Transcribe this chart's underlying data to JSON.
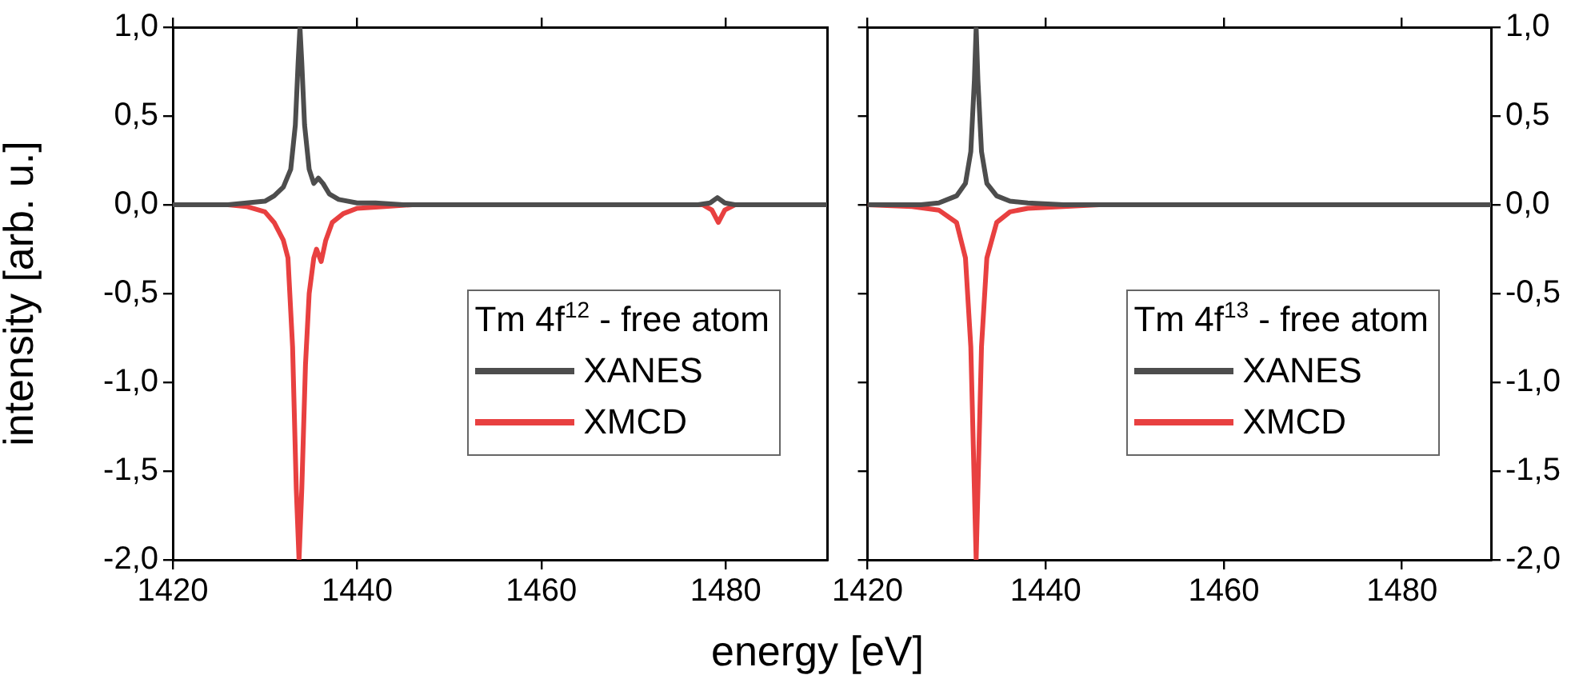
{
  "chart_data": [
    {
      "type": "line",
      "xlabel": "energy [eV]",
      "ylabel": "intensity [arb. u.]",
      "legend_title": "Tm 4f$^{12}$ - free atom",
      "legend": "bottom right",
      "grid": false,
      "marker": "none",
      "line_style": "solid",
      "xlim": [
        1420,
        1491
      ],
      "xticks": [
        1420,
        1440,
        1460,
        1480
      ],
      "ylim": [
        -2,
        1
      ],
      "yticks": [
        {
          "value": -2,
          "label": "-2,0"
        },
        {
          "value": -1.5,
          "label": "-1,5"
        },
        {
          "value": -1,
          "label": "-1,0"
        },
        {
          "value": -0.5,
          "label": "-0,5"
        },
        {
          "value": 0,
          "label": "0,0"
        },
        {
          "value": 0.5,
          "label": "0,5"
        },
        {
          "value": 1,
          "label": "1,0"
        }
      ],
      "series": [
        {
          "name": "XANES",
          "color": "#4d4d4d",
          "x": [
            1420,
            1426,
            1428,
            1430,
            1431,
            1432,
            1432.8,
            1433.3,
            1433.6,
            1433.8,
            1434,
            1434.3,
            1434.8,
            1435.3,
            1435.8,
            1436.3,
            1437,
            1438,
            1440,
            1442,
            1445,
            1477,
            1478.3,
            1479.1,
            1479.9,
            1481,
            1491
          ],
          "values": [
            0,
            0,
            0.01,
            0.02,
            0.05,
            0.1,
            0.2,
            0.45,
            0.8,
            1,
            0.8,
            0.45,
            0.2,
            0.12,
            0.15,
            0.12,
            0.06,
            0.03,
            0.01,
            0.01,
            0,
            0,
            0.01,
            0.04,
            0.01,
            0,
            0
          ]
        },
        {
          "name": "XMCD",
          "color": "#e84040",
          "x": [
            1420,
            1426,
            1428,
            1430,
            1431,
            1432,
            1432.5,
            1433,
            1433.4,
            1433.7,
            1434,
            1434.4,
            1434.8,
            1435.3,
            1435.6,
            1436.1,
            1436.6,
            1437.3,
            1438.5,
            1440,
            1443,
            1446,
            1477.5,
            1478.5,
            1479.2,
            1479.9,
            1481,
            1491
          ],
          "values": [
            0,
            0,
            -0.01,
            -0.04,
            -0.1,
            -0.2,
            -0.3,
            -0.8,
            -1.6,
            -2,
            -1.6,
            -0.9,
            -0.5,
            -0.3,
            -0.25,
            -0.32,
            -0.2,
            -0.1,
            -0.05,
            -0.02,
            -0.01,
            0,
            0,
            -0.03,
            -0.1,
            -0.03,
            0,
            0
          ]
        }
      ]
    },
    {
      "type": "line",
      "legend_title": "Tm 4f$^{13}$ - free atom",
      "legend": "bottom right",
      "grid": false,
      "marker": "none",
      "line_style": "solid",
      "xlim": [
        1420,
        1490
      ],
      "xticks": [
        1420,
        1440,
        1460,
        1480
      ],
      "ylim": [
        -2,
        1
      ],
      "yticks": [
        {
          "value": -2,
          "label": "-2,0"
        },
        {
          "value": -1.5,
          "label": "-1,5"
        },
        {
          "value": -1,
          "label": "-1,0"
        },
        {
          "value": -0.5,
          "label": "-0,5"
        },
        {
          "value": 0,
          "label": "0,0"
        },
        {
          "value": 0.5,
          "label": "0,5"
        },
        {
          "value": 1,
          "label": "1,0"
        }
      ],
      "series": [
        {
          "name": "XANES",
          "color": "#4d4d4d",
          "x": [
            1420,
            1426,
            1428,
            1430,
            1431,
            1431.6,
            1432,
            1432.2,
            1432.4,
            1432.8,
            1433.4,
            1434.5,
            1436,
            1438,
            1442,
            1490
          ],
          "values": [
            0,
            0,
            0.01,
            0.05,
            0.12,
            0.3,
            0.7,
            1,
            0.7,
            0.3,
            0.12,
            0.05,
            0.02,
            0.01,
            0,
            0
          ]
        },
        {
          "name": "XMCD",
          "color": "#e84040",
          "x": [
            1420,
            1425,
            1428,
            1430,
            1431,
            1431.6,
            1432,
            1432.2,
            1432.4,
            1432.8,
            1433.4,
            1434.5,
            1436,
            1438,
            1442,
            1446,
            1490
          ],
          "values": [
            0,
            -0.01,
            -0.03,
            -0.1,
            -0.3,
            -0.8,
            -1.6,
            -2,
            -1.6,
            -0.8,
            -0.3,
            -0.1,
            -0.04,
            -0.02,
            -0.01,
            0,
            0
          ]
        }
      ]
    }
  ]
}
